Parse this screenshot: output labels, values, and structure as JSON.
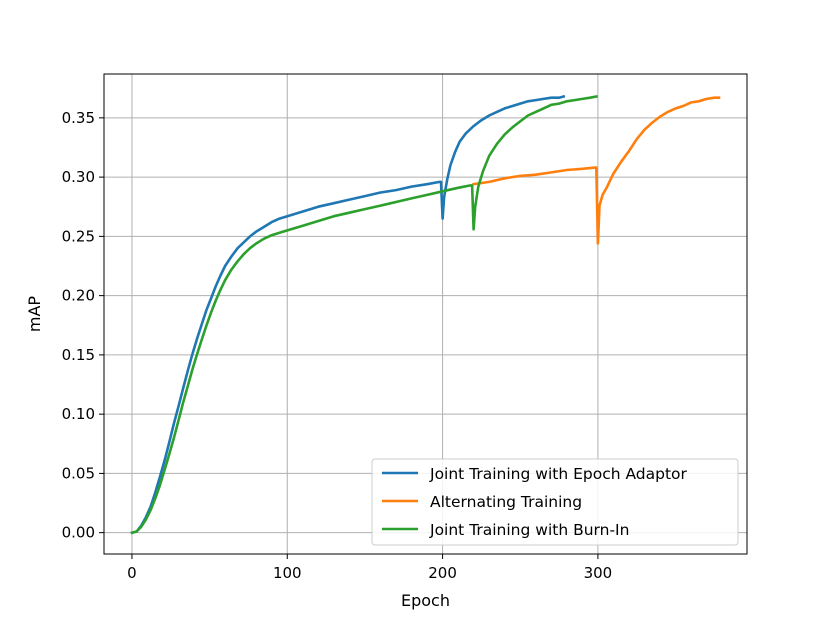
{
  "chart_data": {
    "type": "line",
    "title": "",
    "xlabel": "Epoch",
    "ylabel": "mAP",
    "xlim": [
      -18,
      396
    ],
    "ylim": [
      -0.018,
      0.387
    ],
    "xticks": [
      0,
      100,
      200,
      300
    ],
    "xtick_labels": [
      "0",
      "100",
      "200",
      "300"
    ],
    "yticks": [
      0.0,
      0.05,
      0.1,
      0.15,
      0.2,
      0.25,
      0.3,
      0.35
    ],
    "ytick_labels": [
      "0.00",
      "0.05",
      "0.10",
      "0.15",
      "0.20",
      "0.25",
      "0.30",
      "0.35"
    ],
    "grid": true,
    "legend_position": "bottom-right",
    "series": [
      {
        "name": "Joint Training with Epoch Adaptor",
        "color": "#1f77b4",
        "points": [
          [
            0,
            0.0
          ],
          [
            3,
            0.001
          ],
          [
            6,
            0.006
          ],
          [
            9,
            0.013
          ],
          [
            12,
            0.022
          ],
          [
            15,
            0.034
          ],
          [
            18,
            0.047
          ],
          [
            21,
            0.061
          ],
          [
            24,
            0.076
          ],
          [
            27,
            0.092
          ],
          [
            30,
            0.107
          ],
          [
            33,
            0.122
          ],
          [
            36,
            0.137
          ],
          [
            39,
            0.151
          ],
          [
            42,
            0.164
          ],
          [
            45,
            0.176
          ],
          [
            48,
            0.188
          ],
          [
            51,
            0.198
          ],
          [
            54,
            0.208
          ],
          [
            57,
            0.217
          ],
          [
            60,
            0.225
          ],
          [
            64,
            0.233
          ],
          [
            68,
            0.24
          ],
          [
            72,
            0.245
          ],
          [
            76,
            0.25
          ],
          [
            80,
            0.254
          ],
          [
            85,
            0.258
          ],
          [
            90,
            0.262
          ],
          [
            95,
            0.265
          ],
          [
            100,
            0.267
          ],
          [
            110,
            0.271
          ],
          [
            120,
            0.275
          ],
          [
            130,
            0.278
          ],
          [
            140,
            0.281
          ],
          [
            150,
            0.284
          ],
          [
            160,
            0.287
          ],
          [
            170,
            0.289
          ],
          [
            180,
            0.292
          ],
          [
            190,
            0.294
          ],
          [
            198,
            0.296
          ],
          [
            199,
            0.296
          ],
          [
            200,
            0.265
          ],
          [
            201,
            0.283
          ],
          [
            203,
            0.298
          ],
          [
            205,
            0.31
          ],
          [
            208,
            0.321
          ],
          [
            211,
            0.33
          ],
          [
            215,
            0.337
          ],
          [
            220,
            0.343
          ],
          [
            225,
            0.348
          ],
          [
            230,
            0.352
          ],
          [
            235,
            0.355
          ],
          [
            240,
            0.358
          ],
          [
            245,
            0.36
          ],
          [
            250,
            0.362
          ],
          [
            255,
            0.364
          ],
          [
            260,
            0.365
          ],
          [
            265,
            0.366
          ],
          [
            270,
            0.367
          ],
          [
            275,
            0.367
          ],
          [
            278,
            0.368
          ]
        ]
      },
      {
        "name": "Alternating Training",
        "color": "#ff7f0e",
        "points": [
          [
            220,
            0.294
          ],
          [
            230,
            0.296
          ],
          [
            240,
            0.299
          ],
          [
            250,
            0.301
          ],
          [
            260,
            0.302
          ],
          [
            270,
            0.304
          ],
          [
            280,
            0.306
          ],
          [
            290,
            0.307
          ],
          [
            298,
            0.308
          ],
          [
            299,
            0.308
          ],
          [
            300,
            0.244
          ],
          [
            301,
            0.276
          ],
          [
            303,
            0.285
          ],
          [
            306,
            0.292
          ],
          [
            310,
            0.303
          ],
          [
            315,
            0.313
          ],
          [
            320,
            0.322
          ],
          [
            325,
            0.332
          ],
          [
            330,
            0.34
          ],
          [
            335,
            0.346
          ],
          [
            340,
            0.351
          ],
          [
            345,
            0.355
          ],
          [
            350,
            0.358
          ],
          [
            355,
            0.36
          ],
          [
            360,
            0.363
          ],
          [
            365,
            0.364
          ],
          [
            370,
            0.366
          ],
          [
            375,
            0.367
          ],
          [
            378,
            0.367
          ]
        ]
      },
      {
        "name": "Joint Training with Burn-In",
        "color": "#2ca02c",
        "points": [
          [
            0,
            0.0
          ],
          [
            3,
            0.001
          ],
          [
            6,
            0.005
          ],
          [
            9,
            0.011
          ],
          [
            12,
            0.019
          ],
          [
            15,
            0.029
          ],
          [
            18,
            0.04
          ],
          [
            21,
            0.053
          ],
          [
            24,
            0.066
          ],
          [
            27,
            0.08
          ],
          [
            30,
            0.095
          ],
          [
            33,
            0.11
          ],
          [
            36,
            0.124
          ],
          [
            39,
            0.138
          ],
          [
            42,
            0.151
          ],
          [
            45,
            0.163
          ],
          [
            48,
            0.175
          ],
          [
            51,
            0.186
          ],
          [
            54,
            0.196
          ],
          [
            57,
            0.205
          ],
          [
            60,
            0.213
          ],
          [
            64,
            0.222
          ],
          [
            68,
            0.229
          ],
          [
            72,
            0.235
          ],
          [
            76,
            0.24
          ],
          [
            80,
            0.244
          ],
          [
            85,
            0.248
          ],
          [
            90,
            0.251
          ],
          [
            95,
            0.253
          ],
          [
            100,
            0.255
          ],
          [
            110,
            0.259
          ],
          [
            120,
            0.263
          ],
          [
            130,
            0.267
          ],
          [
            140,
            0.27
          ],
          [
            150,
            0.273
          ],
          [
            160,
            0.276
          ],
          [
            170,
            0.279
          ],
          [
            180,
            0.282
          ],
          [
            190,
            0.285
          ],
          [
            200,
            0.288
          ],
          [
            210,
            0.291
          ],
          [
            218,
            0.293
          ],
          [
            219,
            0.293
          ],
          [
            220,
            0.256
          ],
          [
            221,
            0.275
          ],
          [
            223,
            0.292
          ],
          [
            226,
            0.305
          ],
          [
            230,
            0.318
          ],
          [
            235,
            0.328
          ],
          [
            240,
            0.336
          ],
          [
            245,
            0.342
          ],
          [
            250,
            0.347
          ],
          [
            255,
            0.352
          ],
          [
            260,
            0.355
          ],
          [
            265,
            0.358
          ],
          [
            270,
            0.361
          ],
          [
            275,
            0.362
          ],
          [
            280,
            0.364
          ],
          [
            285,
            0.365
          ],
          [
            290,
            0.366
          ],
          [
            295,
            0.367
          ],
          [
            299,
            0.368
          ]
        ]
      }
    ]
  }
}
